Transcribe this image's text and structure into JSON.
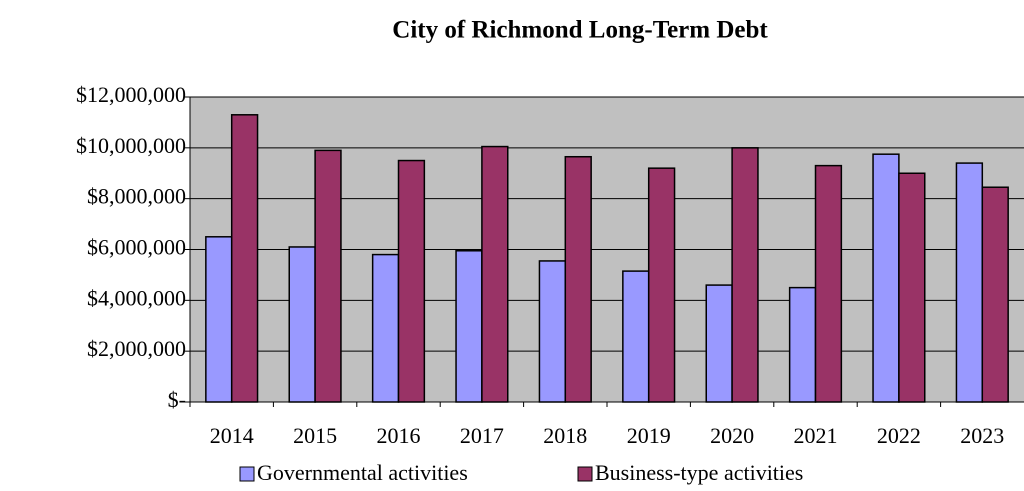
{
  "chart_data": {
    "type": "bar",
    "title": "City of Richmond Long-Term Debt",
    "categories": [
      "2014",
      "2015",
      "2016",
      "2017",
      "2018",
      "2019",
      "2020",
      "2021",
      "2022",
      "2023"
    ],
    "series": [
      {
        "name": "Governmental activities",
        "color": "#9999ff",
        "values": [
          6500000,
          6100000,
          5800000,
          5950000,
          5550000,
          5150000,
          4600000,
          4500000,
          9750000,
          9400000
        ]
      },
      {
        "name": "Business-type activities",
        "color": "#993366",
        "values": [
          11300000,
          9900000,
          9500000,
          10050000,
          9650000,
          9200000,
          10000000,
          9300000,
          9000000,
          8450000
        ]
      }
    ],
    "ylim": [
      0,
      12000000
    ],
    "yticks": [
      {
        "value": 0,
        "label": "$-"
      },
      {
        "value": 2000000,
        "label": "$2,000,000"
      },
      {
        "value": 4000000,
        "label": "$4,000,000"
      },
      {
        "value": 6000000,
        "label": "$6,000,000"
      },
      {
        "value": 8000000,
        "label": "$8,000,000"
      },
      {
        "value": 10000000,
        "label": "$10,000,000"
      },
      {
        "value": 12000000,
        "label": "$12,000,000"
      }
    ],
    "grid": true,
    "plot_background": "#c0c0c0",
    "legend": "bottom"
  }
}
